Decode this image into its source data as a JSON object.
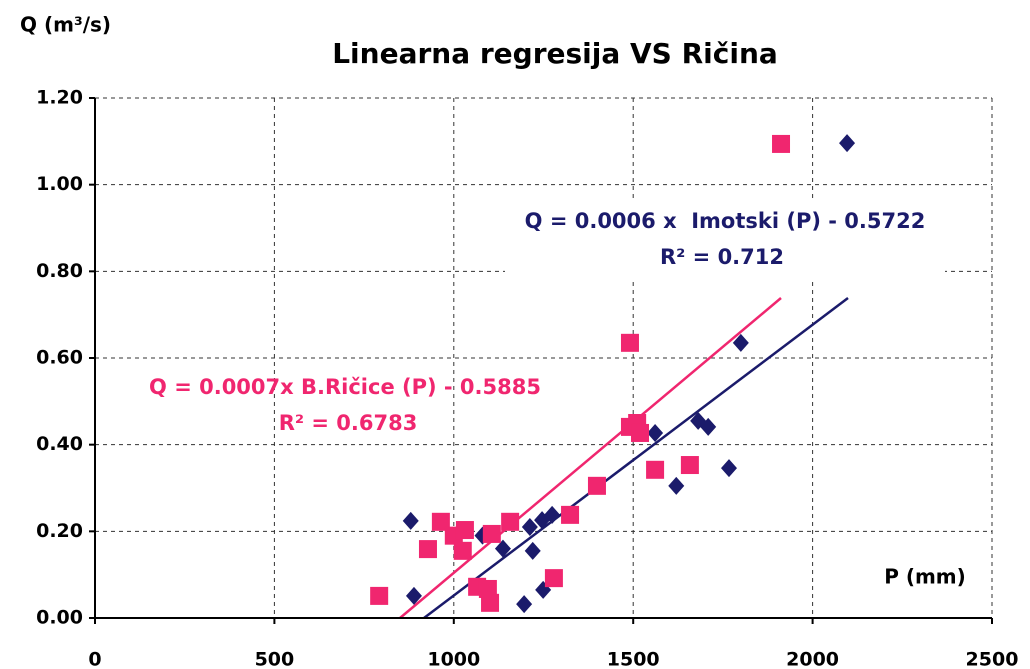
{
  "chart_data": {
    "type": "scatter",
    "title": "Linearna regresija VS Ričina",
    "y_label": "Q (m³/s)",
    "x_label": "P (mm)",
    "annotations": [
      "Q = 0.0006 x  Imotski (P) - 0.5722",
      "R² = 0.712",
      "Q = 0.0007x B.Ričice (P) - 0.5885",
      "R² = 0.6783"
    ],
    "xlim": [
      0,
      2500
    ],
    "xticks": [
      0,
      500,
      1000,
      1500,
      2000,
      2500
    ],
    "ylim": [
      0,
      1.2
    ],
    "yticks": [
      {
        "value": 0,
        "label": "0.00"
      },
      {
        "value": 0.2,
        "label": "0.20"
      },
      {
        "value": 0.4,
        "label": "0.40"
      },
      {
        "value": 0.6,
        "label": "0.60"
      },
      {
        "value": 0.8,
        "label": "0.80"
      },
      {
        "value": 1.0,
        "label": "1.00"
      },
      {
        "value": 1.2,
        "label": "1.20"
      }
    ],
    "grid": true,
    "series": [
      {
        "color": "#1b1b6b",
        "marker": "diamond",
        "x": [
          880,
          889,
          1080,
          1137,
          1212,
          1220,
          1196,
          1249,
          1246,
          1274,
          1561,
          1620,
          1681,
          1709,
          1767,
          1800,
          2096
        ],
        "values": [
          0.224,
          0.051,
          0.19,
          0.16,
          0.21,
          0.155,
          0.032,
          0.065,
          0.226,
          0.238,
          0.427,
          0.305,
          0.455,
          0.441,
          0.346,
          0.635,
          1.096
        ]
      },
      {
        "color": "#f0266f",
        "marker": "square",
        "x": [
          792,
          928,
          964,
          1000,
          1025,
          1031,
          1065,
          1095,
          1101,
          1106,
          1157,
          1279,
          1324,
          1399,
          1491,
          1491,
          1511,
          1519,
          1561,
          1658,
          1912
        ],
        "values": [
          0.051,
          0.159,
          0.222,
          0.19,
          0.155,
          0.203,
          0.072,
          0.067,
          0.035,
          0.194,
          0.222,
          0.092,
          0.238,
          0.305,
          0.635,
          0.441,
          0.45,
          0.427,
          0.342,
          0.353,
          1.094
        ]
      }
    ]
  }
}
